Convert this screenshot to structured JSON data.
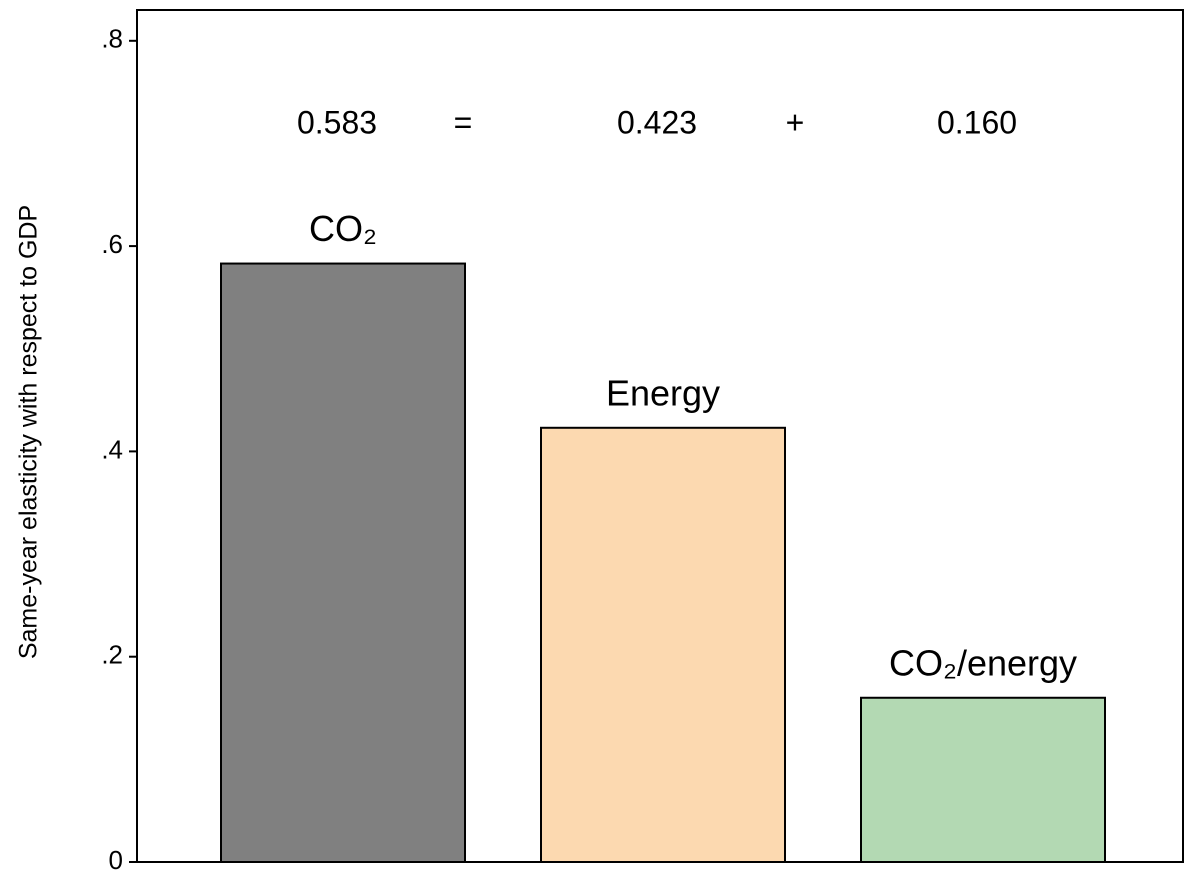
{
  "chart_data": {
    "type": "bar",
    "y_axis_label": "Same-year elasticity with respect to GDP",
    "categories": [
      "CO₂",
      "Energy",
      "CO₂/energy"
    ],
    "values": [
      0.583,
      0.423,
      0.16
    ],
    "value_labels": [
      "0.583",
      "0.423",
      "0.160"
    ],
    "annotations": [
      "=",
      "+"
    ],
    "colors": [
      "#808080",
      "#fcd9b0",
      "#b3d9b3"
    ],
    "ylim": [
      0,
      0.83
    ],
    "yticks": [
      0,
      {
        "value": 0.2,
        "label": ".2"
      },
      {
        "value": 0.4,
        "label": ".4"
      },
      {
        "value": 0.6,
        "label": ".6"
      },
      {
        "value": 0.8,
        "label": ".8"
      }
    ],
    "grid": false
  }
}
